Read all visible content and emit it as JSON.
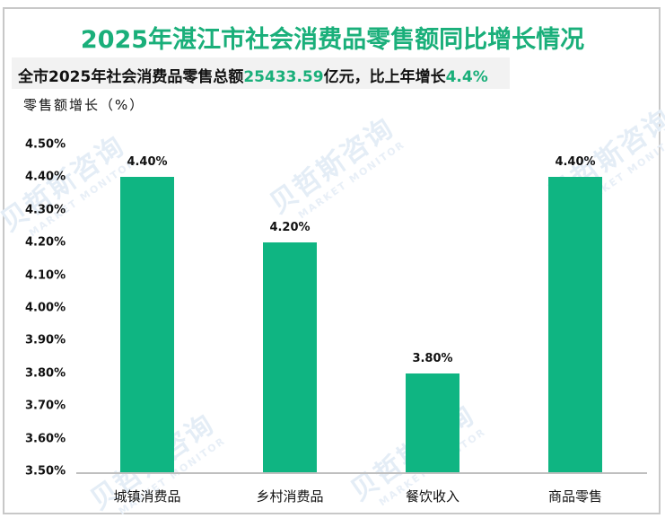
{
  "header": {
    "title": "2025年湛江市社会消费品零售额同比增长情况",
    "subtitle_prefix": "全市2025年社会消费品零售总额",
    "subtitle_value": "25433.59",
    "subtitle_mid": "亿元，比上年增长",
    "subtitle_growth": "4.4%"
  },
  "watermark": {
    "cn": "贝哲斯咨询",
    "en": "MARKET MONITOR"
  },
  "colors": {
    "accent": "#1aaf7a",
    "bar": "#0fb582",
    "axis": "#bfbfbf",
    "frame": "#c8c8c8",
    "subtitle_bg": "#f2f2f2"
  },
  "chart_data": {
    "type": "bar",
    "title": "2025年湛江市社会消费品零售额同比增长情况",
    "subtitle": "全市2025年社会消费品零售总额25433.59亿元，比上年增长4.4%",
    "xlabel": "",
    "ylabel": "零售额增长（%）",
    "categories": [
      "城镇消费品",
      "乡村消费品",
      "餐饮收入",
      "商品零售"
    ],
    "values": [
      4.4,
      4.2,
      3.8,
      4.4
    ],
    "value_labels": [
      "4.40%",
      "4.20%",
      "3.80%",
      "4.40%"
    ],
    "ylim": [
      3.5,
      4.5
    ],
    "yticks": [
      "4.50%",
      "4.40%",
      "4.30%",
      "4.20%",
      "4.10%",
      "4.00%",
      "3.90%",
      "3.80%",
      "3.70%",
      "3.60%",
      "3.50%"
    ],
    "grid": false,
    "legend": null
  }
}
